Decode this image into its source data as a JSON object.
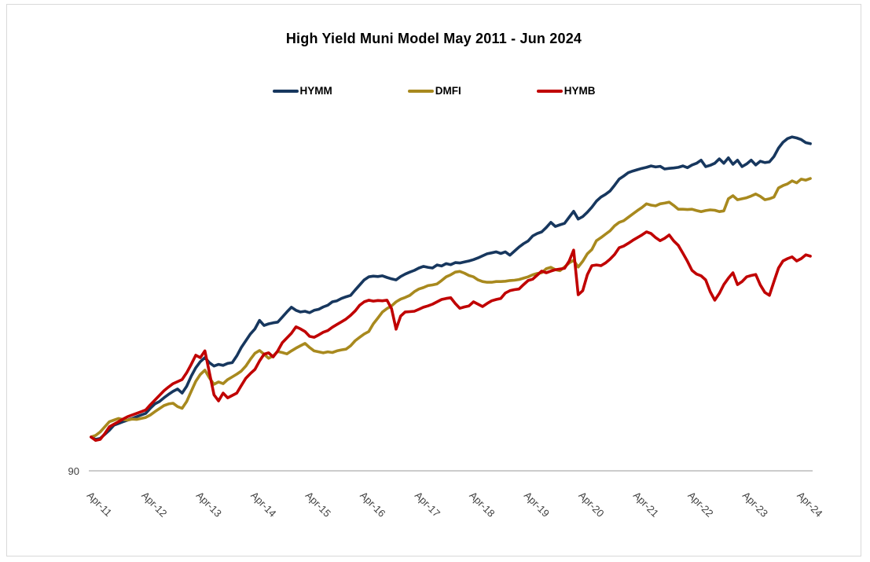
{
  "title": "High Yield Muni Model May 2011 - Jun 2024",
  "legend": {
    "items": [
      {
        "label": "HYMM",
        "color": "#17375E"
      },
      {
        "label": "DMFI",
        "color": "#A8891E"
      },
      {
        "label": "HYMB",
        "color": "#C00000"
      }
    ]
  },
  "y_axis": {
    "visible_tick_label": "90",
    "axis_line_color": "#CCCCCC"
  },
  "chart_data": {
    "type": "line",
    "title": "High Yield Muni Model May 2011 - Jun 2024",
    "x_frequency": "monthly",
    "x_start": "Apr-11",
    "x_end": "Jun-24",
    "x_tick_labels": [
      "Apr-11",
      "Apr-12",
      "Apr-13",
      "Apr-14",
      "Apr-15",
      "Apr-16",
      "Apr-17",
      "Apr-18",
      "Apr-19",
      "Apr-20",
      "Apr-21",
      "Apr-22",
      "Apr-23",
      "Apr-24"
    ],
    "x_tick_every_months": 12,
    "ylabel": "",
    "xlabel": "",
    "ylim": [
      88,
      193
    ],
    "visible_y_ticks": [
      90
    ],
    "grid": false,
    "legend_position": "top",
    "series": [
      {
        "name": "HYMM",
        "color": "#17375E",
        "values": [
          100,
          99.3,
          99.6,
          100.8,
          102,
          103.5,
          104,
          104.5,
          105,
          105.5,
          106,
          106.5,
          107,
          108.5,
          109.8,
          110.5,
          111.6,
          112.6,
          113.5,
          114.2,
          113,
          115,
          118,
          120.5,
          122.3,
          123.5,
          122,
          121,
          121.5,
          121.2,
          121.8,
          122,
          124,
          126.5,
          128.5,
          130.5,
          132,
          134.5,
          133,
          133.5,
          133.8,
          134,
          135.5,
          137,
          138.4,
          137.5,
          137,
          137.2,
          136.8,
          137.5,
          137.8,
          138.5,
          139,
          140,
          140.3,
          141,
          141.5,
          141.9,
          143.5,
          145,
          146.5,
          147.4,
          147.6,
          147.5,
          147.7,
          147.2,
          146.8,
          146.5,
          147.5,
          148.2,
          148.8,
          149.3,
          150,
          150.5,
          150.2,
          150,
          150.9,
          150.6,
          151.3,
          151,
          151.6,
          151.5,
          151.8,
          152.1,
          152.5,
          153,
          153.6,
          154.2,
          154.5,
          154.8,
          154.3,
          154.8,
          153.8,
          155,
          156.2,
          157.2,
          158,
          159.5,
          160.2,
          160.7,
          162,
          163.5,
          162.3,
          162.8,
          163.2,
          165,
          166.8,
          164.5,
          165.2,
          166.5,
          168,
          169.8,
          171,
          171.8,
          172.8,
          174.5,
          176.3,
          177.2,
          178.2,
          178.7,
          179.1,
          179.5,
          179.8,
          180.2,
          179.9,
          180.1,
          179.3,
          179.5,
          179.6,
          179.8,
          180.2,
          179.7,
          180.5,
          181,
          181.9,
          180,
          180.4,
          181,
          182.3,
          181,
          182.6,
          180.7,
          181.9,
          180,
          180.8,
          181.9,
          180.5,
          181.6,
          181.2,
          181.4,
          183,
          185.5,
          187.2,
          188.3,
          188.8,
          188.5,
          188,
          187.1,
          186.8
        ]
      },
      {
        "name": "DMFI",
        "color": "#A8891E",
        "values": [
          100,
          100.5,
          101.5,
          103,
          104.5,
          105,
          105.5,
          105.2,
          105,
          105.3,
          105.2,
          105.5,
          105.8,
          106.5,
          107.5,
          108.4,
          109.3,
          109.8,
          110,
          109,
          108.5,
          110.5,
          113.5,
          116.5,
          118.5,
          119.8,
          117.5,
          115.6,
          116.3,
          115.8,
          117,
          117.8,
          118.6,
          119.5,
          121,
          123,
          124.8,
          125.6,
          124.5,
          123.3,
          124,
          125.3,
          125,
          124.6,
          125.5,
          126.3,
          127,
          127.7,
          126.5,
          125.5,
          125.2,
          124.9,
          125.2,
          125,
          125.5,
          125.8,
          126,
          127,
          128.5,
          129.5,
          130.5,
          131.2,
          133.5,
          135.2,
          137,
          138,
          138.8,
          140,
          140.8,
          141.3,
          141.9,
          143,
          143.8,
          144.2,
          144.8,
          145,
          145.3,
          146.3,
          147.4,
          148,
          148.8,
          149,
          148.5,
          147.8,
          147.4,
          146.5,
          146,
          145.8,
          145.8,
          146,
          146,
          146.1,
          146.3,
          146.4,
          146.6,
          147,
          147.4,
          148,
          148.4,
          148.6,
          149.8,
          150.2,
          149.5,
          149.2,
          150.3,
          151.5,
          152.3,
          150.3,
          152,
          154.2,
          155.5,
          158.1,
          159,
          160,
          161,
          162.5,
          163.5,
          164,
          165,
          166,
          167,
          167.9,
          169,
          168.6,
          168.4,
          169,
          169.2,
          169.5,
          168.5,
          167.4,
          167.4,
          167.3,
          167.4,
          167,
          166.7,
          167,
          167.2,
          167.1,
          166.7,
          166.9,
          170.5,
          171.4,
          170.2,
          170.5,
          170.8,
          171.3,
          171.9,
          171.2,
          170.2,
          170.5,
          171,
          173.7,
          174.4,
          174.9,
          175.8,
          175.2,
          176.3,
          176,
          176.5
        ]
      },
      {
        "name": "HYMB",
        "color": "#C00000",
        "values": [
          100,
          99,
          99.3,
          101,
          103,
          103.8,
          104.5,
          105.3,
          106,
          106.5,
          107,
          107.5,
          108,
          109.5,
          110.9,
          112.3,
          113.7,
          114.8,
          115.8,
          116.4,
          117,
          119,
          121.5,
          124.2,
          123.5,
          125.5,
          119,
          112.5,
          110.7,
          113,
          111.6,
          112.3,
          113,
          115.2,
          117.4,
          118.8,
          120,
          122.5,
          124.5,
          124.9,
          123.7,
          125.5,
          127.9,
          129.3,
          130.7,
          132.6,
          132,
          131.2,
          129.8,
          129.5,
          130.2,
          131,
          131.5,
          132.5,
          133.3,
          134.1,
          134.9,
          136,
          137.3,
          139,
          140,
          140.5,
          140.2,
          140.4,
          140.3,
          140.5,
          138,
          131.9,
          135.8,
          137,
          137.1,
          137.2,
          137.8,
          138.4,
          138.8,
          139.3,
          140,
          140.7,
          141,
          141.2,
          139.5,
          138.1,
          138.5,
          138.8,
          140,
          139.3,
          138.6,
          139.5,
          140.3,
          140.7,
          141,
          142.6,
          143.3,
          143.6,
          143.8,
          145.1,
          146.3,
          146.7,
          147.9,
          149.1,
          148.6,
          149.1,
          149.5,
          149.7,
          149.9,
          152,
          155.3,
          142.1,
          143.3,
          148,
          150.7,
          150.9,
          150.7,
          151.5,
          152.6,
          154,
          156,
          156.5,
          157.3,
          158.2,
          159,
          159.8,
          160.7,
          160.2,
          159,
          158.1,
          158.8,
          159.8,
          158,
          156.7,
          154.4,
          152,
          149.3,
          148.2,
          147.7,
          146.5,
          143,
          140.5,
          142.5,
          145.1,
          147,
          148.6,
          145.1,
          146,
          147.4,
          147.8,
          148.1,
          145,
          142.8,
          141.9,
          146,
          150,
          152.1,
          152.8,
          153.3,
          152.1,
          152.8,
          153.9,
          153.5
        ]
      }
    ]
  }
}
